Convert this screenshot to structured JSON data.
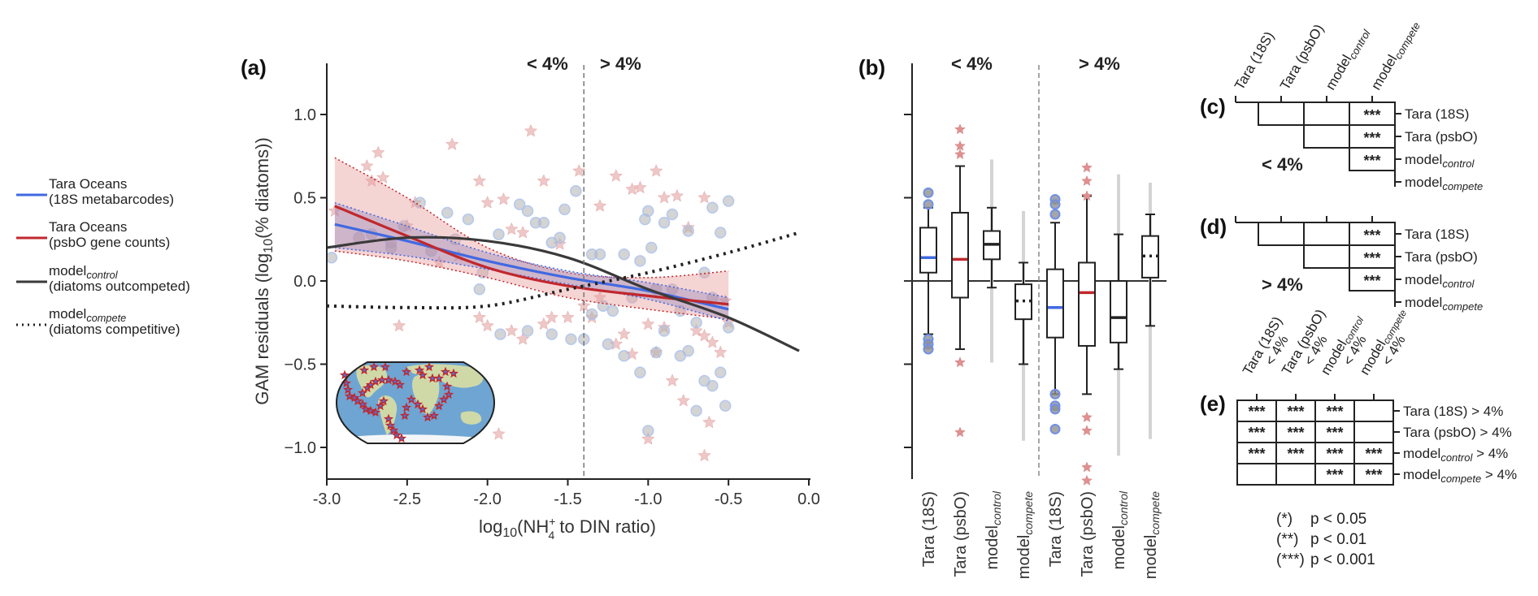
{
  "colors": {
    "tara18s": "#4169e1",
    "psbo": "#c0282d",
    "model_control": "#3a3a3a",
    "model_compete": "#222222",
    "band_fill": "#e8a0a0",
    "point_fill": "#b8b8b8",
    "point_edge": "#a8c0f0",
    "star_fill": "#e8b4b4",
    "grey_range": "#d4d4d4"
  },
  "legend": {
    "items": [
      {
        "key": "tara18s",
        "line1": "Tara Oceans",
        "line2": "(18S metabarcodes)",
        "style": "solid"
      },
      {
        "key": "psbo",
        "line1": "Tara Oceans",
        "line2": "(psbO gene counts)",
        "style": "solid"
      },
      {
        "key": "model_control",
        "line1": "model",
        "sub": "control",
        "line2": "(diatoms outcompeted)",
        "style": "solid"
      },
      {
        "key": "model_compete",
        "line1": "model",
        "sub": "compete",
        "line2": "(diatoms competitive)",
        "style": "dotted"
      }
    ]
  },
  "chart_data": [
    {
      "id": "a",
      "panel_label": "(a)",
      "type": "scatter",
      "xlabel": "log10(NH4+ to DIN ratio)",
      "xlabel_parts": {
        "pre": "log",
        "pre_sub": "10",
        "mid": "(NH",
        "sup": "+",
        "sub": "4",
        "post": " to DIN ratio)"
      },
      "ylabel": "GAM residuals (log10(% diatoms))",
      "ylabel_parts": {
        "pre": "GAM residuals (log",
        "sub": "10",
        "post": "(% diatoms))"
      },
      "xlim": [
        -3.0,
        0.0
      ],
      "ylim": [
        -1.2,
        1.3
      ],
      "xticks": [
        -3.0,
        -2.5,
        -2.0,
        -1.5,
        -1.0,
        -0.5,
        0.0
      ],
      "xtick_labels": [
        "-3.0",
        "-2.5",
        "-2.0",
        "-1.5",
        "-1.0",
        "-0.5",
        "0.0"
      ],
      "yticks": [
        -1.0,
        -0.5,
        0.0,
        0.5,
        1.0
      ],
      "ytick_labels": [
        "−1.0",
        "−0.5",
        "0.0",
        "0.5",
        "1.0"
      ],
      "threshold_x": -1.4,
      "threshold_labels": {
        "left": "< 4%",
        "right": "> 4%"
      },
      "series": [
        {
          "name": "Tara Oceans (18S metabarcodes) fit",
          "key": "tara18s",
          "x": [
            -2.95,
            -2.5,
            -2.0,
            -1.5,
            -1.0,
            -0.5
          ],
          "y": [
            0.34,
            0.24,
            0.12,
            0.02,
            -0.06,
            -0.17
          ],
          "ci_upper": [
            0.47,
            0.33,
            0.17,
            0.06,
            -0.01,
            -0.1
          ],
          "ci_lower": [
            0.2,
            0.15,
            0.07,
            -0.02,
            -0.11,
            -0.24
          ]
        },
        {
          "name": "Tara Oceans (psbO gene counts) fit",
          "key": "psbo",
          "x": [
            -2.95,
            -2.5,
            -2.0,
            -1.5,
            -1.0,
            -0.5
          ],
          "y": [
            0.45,
            0.27,
            0.08,
            -0.03,
            -0.09,
            -0.14
          ],
          "ci_upper": [
            0.74,
            0.5,
            0.2,
            0.05,
            0.02,
            0.06
          ],
          "ci_lower": [
            0.18,
            0.12,
            0.02,
            -0.1,
            -0.17,
            -0.23
          ]
        },
        {
          "name": "model control",
          "key": "model_control",
          "x": [
            -3.0,
            -2.5,
            -2.0,
            -1.5,
            -1.0,
            -0.5,
            -0.06
          ],
          "y": [
            0.2,
            0.26,
            0.24,
            0.14,
            -0.05,
            -0.22,
            -0.42
          ]
        },
        {
          "name": "model compete",
          "key": "model_compete",
          "x": [
            -3.0,
            -2.5,
            -2.0,
            -1.5,
            -1.0,
            -0.5,
            -0.06
          ],
          "y": [
            -0.15,
            -0.16,
            -0.15,
            -0.05,
            0.05,
            0.17,
            0.29
          ]
        }
      ],
      "points_18s": [
        [
          -2.97,
          0.14
        ],
        [
          -2.8,
          0.26
        ],
        [
          -2.72,
          0.28
        ],
        [
          -2.6,
          0.23
        ],
        [
          -2.52,
          0.33
        ],
        [
          -2.42,
          0.47
        ],
        [
          -2.25,
          0.41
        ],
        [
          -2.12,
          0.37
        ],
        [
          -2.05,
          -0.05
        ],
        [
          -2.03,
          0.05
        ],
        [
          -1.93,
          0.28
        ],
        [
          -1.8,
          0.46
        ],
        [
          -1.75,
          0.42
        ],
        [
          -1.7,
          0.35
        ],
        [
          -1.65,
          0.35
        ],
        [
          -1.6,
          0.23
        ],
        [
          -1.55,
          0.26
        ],
        [
          -1.52,
          0.43
        ],
        [
          -1.45,
          0.54
        ],
        [
          -1.35,
          0.16
        ],
        [
          -1.3,
          0.16
        ],
        [
          -1.28,
          -0.15
        ],
        [
          -1.22,
          -0.18
        ],
        [
          -1.15,
          0.16
        ],
        [
          -1.05,
          0.12
        ],
        [
          -1.02,
          0.37
        ],
        [
          -1.0,
          0.42
        ],
        [
          -0.98,
          0.2
        ],
        [
          -0.95,
          -0.05
        ],
        [
          -0.9,
          0.35
        ],
        [
          -0.85,
          0.4
        ],
        [
          -0.8,
          -0.18
        ],
        [
          -0.75,
          0.3
        ],
        [
          -0.7,
          -0.25
        ],
        [
          -0.65,
          0.05
        ],
        [
          -0.6,
          0.44
        ],
        [
          -0.55,
          0.29
        ],
        [
          -0.5,
          -0.28
        ],
        [
          -0.5,
          0.48
        ],
        [
          -1.4,
          -0.35
        ],
        [
          -1.25,
          -0.38
        ],
        [
          -1.15,
          -0.45
        ],
        [
          -1.05,
          -0.55
        ],
        [
          -1.0,
          -0.9
        ],
        [
          -0.95,
          -0.43
        ],
        [
          -0.9,
          -0.3
        ],
        [
          -0.8,
          -0.45
        ],
        [
          -0.75,
          -0.42
        ],
        [
          -0.7,
          -0.78
        ],
        [
          -0.65,
          -0.6
        ],
        [
          -0.6,
          -0.63
        ],
        [
          -0.55,
          -0.55
        ],
        [
          -0.52,
          -0.75
        ],
        [
          -1.75,
          -0.3
        ],
        [
          -1.6,
          -0.32
        ],
        [
          -1.48,
          -0.35
        ],
        [
          -1.35,
          -0.2
        ],
        [
          -1.1,
          -0.1
        ],
        [
          -0.85,
          -0.05
        ],
        [
          -0.6,
          -0.1
        ],
        [
          -1.92,
          -0.32
        ],
        [
          -2.2,
          0.25
        ],
        [
          -2.35,
          0.18
        ],
        [
          -2.6,
          0.2
        ]
      ],
      "points_psbo": [
        [
          -2.95,
          0.42
        ],
        [
          -2.75,
          0.69
        ],
        [
          -2.72,
          0.6
        ],
        [
          -2.68,
          0.77
        ],
        [
          -2.65,
          0.62
        ],
        [
          -2.5,
          0.33
        ],
        [
          -2.45,
          0.47
        ],
        [
          -2.3,
          0.11
        ],
        [
          -2.22,
          0.82
        ],
        [
          -2.18,
          0.15
        ],
        [
          -2.05,
          0.6
        ],
        [
          -2.0,
          0.47
        ],
        [
          -1.9,
          0.49
        ],
        [
          -1.85,
          0.31
        ],
        [
          -1.78,
          0.29
        ],
        [
          -1.73,
          0.9
        ],
        [
          -1.65,
          0.6
        ],
        [
          -1.55,
          0.22
        ],
        [
          -1.43,
          0.66
        ],
        [
          -1.3,
          0.45
        ],
        [
          -1.2,
          0.63
        ],
        [
          -1.1,
          0.55
        ],
        [
          -1.05,
          0.56
        ],
        [
          -0.95,
          0.66
        ],
        [
          -0.9,
          0.5
        ],
        [
          -0.82,
          0.51
        ],
        [
          -0.75,
          0.32
        ],
        [
          -0.65,
          0.5
        ],
        [
          -2.55,
          -0.27
        ],
        [
          -2.05,
          -0.22
        ],
        [
          -2.0,
          -0.27
        ],
        [
          -1.85,
          -0.3
        ],
        [
          -1.78,
          -0.35
        ],
        [
          -1.65,
          -0.26
        ],
        [
          -1.6,
          -0.22
        ],
        [
          -1.5,
          -0.22
        ],
        [
          -1.4,
          -0.15
        ],
        [
          -1.3,
          -0.1
        ],
        [
          -1.2,
          -0.38
        ],
        [
          -1.1,
          -0.44
        ],
        [
          -1.0,
          -0.26
        ],
        [
          -0.95,
          -0.43
        ],
        [
          -0.9,
          -0.28
        ],
        [
          -0.85,
          -0.6
        ],
        [
          -0.78,
          -0.72
        ],
        [
          -0.7,
          -0.3
        ],
        [
          -0.65,
          -0.33
        ],
        [
          -0.6,
          -0.37
        ],
        [
          -0.55,
          -0.43
        ],
        [
          -0.52,
          -0.12
        ],
        [
          -0.5,
          -0.25
        ],
        [
          -1.93,
          -0.92
        ],
        [
          -1.0,
          -0.95
        ],
        [
          -0.62,
          -0.85
        ],
        [
          -0.65,
          -1.05
        ],
        [
          -1.35,
          -0.22
        ],
        [
          -1.15,
          -0.32
        ]
      ]
    },
    {
      "id": "b",
      "panel_label": "(b)",
      "type": "box",
      "ylim": [
        -1.2,
        1.3
      ],
      "yticks": [
        -1.0,
        -0.5,
        0.0,
        0.5,
        1.0
      ],
      "threshold_labels": {
        "left": "< 4%",
        "right": "> 4%"
      },
      "categories": [
        {
          "label": "Tara (18S)",
          "group": "<4%"
        },
        {
          "label": "Tara (psbO)",
          "group": "<4%"
        },
        {
          "label": "model",
          "sub": "control",
          "group": "<4%"
        },
        {
          "label": "model",
          "sub": "compete",
          "group": "<4%"
        },
        {
          "label": "Tara (18S)",
          "group": ">4%"
        },
        {
          "label": "Tara (psbO)",
          "group": ">4%"
        },
        {
          "label": "model",
          "sub": "control",
          "group": ">4%"
        },
        {
          "label": "model",
          "sub": "compete",
          "group": ">4%"
        }
      ],
      "boxes": [
        {
          "key": "tara18s",
          "q1": 0.05,
          "median": 0.14,
          "q3": 0.32,
          "whisker_low": -0.32,
          "whisker_high": 0.44,
          "outliers": [
            0.53,
            0.46,
            -0.35,
            -0.38,
            -0.41
          ],
          "outlier_shape": "circle",
          "median_style": "solid"
        },
        {
          "key": "psbo",
          "q1": -0.1,
          "median": 0.13,
          "q3": 0.41,
          "whisker_low": -0.41,
          "whisker_high": 0.69,
          "outliers": [
            0.91,
            0.81,
            0.76,
            -0.49,
            -0.91
          ],
          "outlier_shape": "star",
          "median_style": "solid"
        },
        {
          "key": "model_control",
          "q1": 0.13,
          "median": 0.22,
          "q3": 0.3,
          "whisker_low": -0.04,
          "whisker_high": 0.44,
          "range_low": -0.49,
          "range_high": 0.73,
          "median_style": "solid"
        },
        {
          "key": "model_compete",
          "q1": -0.23,
          "median": -0.12,
          "q3": -0.02,
          "whisker_low": -0.5,
          "whisker_high": 0.11,
          "range_low": -0.96,
          "range_high": 0.42,
          "median_style": "dotted"
        },
        {
          "key": "tara18s",
          "q1": -0.34,
          "median": -0.16,
          "q3": 0.07,
          "whisker_low": -0.68,
          "whisker_high": 0.35,
          "outliers": [
            0.49,
            0.46,
            0.4,
            -0.68,
            -0.75,
            -0.77,
            -0.89
          ],
          "outlier_shape": "circle",
          "median_style": "solid"
        },
        {
          "key": "psbo",
          "q1": -0.39,
          "median": -0.07,
          "q3": 0.11,
          "whisker_low": -0.68,
          "whisker_high": 0.51,
          "outliers": [
            0.68,
            0.6,
            0.51,
            -0.82,
            -0.9,
            -1.12,
            -1.2
          ],
          "outlier_shape": "star",
          "median_style": "solid"
        },
        {
          "key": "model_control",
          "q1": -0.37,
          "median": -0.22,
          "q3": 0.0,
          "whisker_low": -0.53,
          "whisker_high": 0.28,
          "range_low": -1.05,
          "range_high": 0.64,
          "median_style": "solid"
        },
        {
          "key": "model_compete",
          "q1": 0.02,
          "median": 0.15,
          "q3": 0.27,
          "whisker_low": -0.27,
          "whisker_high": 0.4,
          "range_low": -0.95,
          "range_high": 0.59,
          "median_style": "dotted"
        }
      ]
    },
    {
      "id": "c",
      "panel_label": "(c)",
      "type": "table",
      "group_label": "< 4%",
      "columns": [
        {
          "label": "Tara (18S)"
        },
        {
          "label": "Tara (psbO)"
        },
        {
          "label": "model",
          "sub": "control"
        },
        {
          "label": "model",
          "sub": "compete"
        }
      ],
      "rows": [
        {
          "label": "Tara (18S)"
        },
        {
          "label": "Tara (psbO)"
        },
        {
          "label": "model",
          "sub": "control"
        },
        {
          "label": "model",
          "sub": "compete"
        }
      ],
      "cells": [
        [
          "",
          "",
          "***"
        ],
        [
          "",
          "***"
        ],
        [
          "***"
        ]
      ]
    },
    {
      "id": "d",
      "panel_label": "(d)",
      "type": "table",
      "group_label": "> 4%",
      "rows": [
        {
          "label": "Tara (18S)"
        },
        {
          "label": "Tara (psbO)"
        },
        {
          "label": "model",
          "sub": "control"
        },
        {
          "label": "model",
          "sub": "compete"
        }
      ],
      "cells": [
        [
          "",
          "",
          "***"
        ],
        [
          "",
          "***"
        ],
        [
          "***"
        ]
      ]
    },
    {
      "id": "e",
      "panel_label": "(e)",
      "type": "table",
      "columns": [
        {
          "l1": "Tara (18S)",
          "l2": "< 4%"
        },
        {
          "l1": "Tara (psbO)",
          "l2": "< 4%"
        },
        {
          "l1": "model",
          "sub": "control",
          "l2": "< 4%"
        },
        {
          "l1": "model",
          "sub": "compete",
          "l2": "< 4%"
        }
      ],
      "rows": [
        {
          "label": "Tara (18S)",
          "suffix": " > 4%"
        },
        {
          "label": "Tara (psbO)",
          "suffix": " > 4%"
        },
        {
          "label": "model",
          "sub": "control",
          "suffix": " > 4%"
        },
        {
          "label": "model",
          "sub": "compete",
          "suffix": " > 4%"
        }
      ],
      "cells": [
        [
          "***",
          "***",
          "***",
          ""
        ],
        [
          "***",
          "***",
          "***",
          ""
        ],
        [
          "***",
          "***",
          "***",
          "***"
        ],
        [
          "",
          "",
          "***",
          "***"
        ]
      ]
    }
  ],
  "significance_key": [
    {
      "symbol": "(*)",
      "text": "p < 0.05"
    },
    {
      "symbol": "(**)",
      "text": "p < 0.01"
    },
    {
      "symbol": "(***)",
      "text": "p < 0.001"
    }
  ],
  "inset_map": {
    "label": "Tara Oceans sampling stations"
  }
}
